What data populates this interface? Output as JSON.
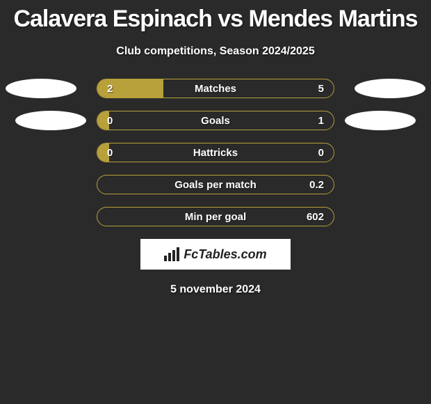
{
  "background_color": "#2a2a2a",
  "accent_color": "#b8a03a",
  "text_color": "#ffffff",
  "title": {
    "line1": "Calavera Espinach vs Mendes Martins",
    "font_size": 34,
    "font_weight": 900
  },
  "subtitle": {
    "text": "Club competitions, Season 2024/2025",
    "font_size": 16
  },
  "bars": {
    "track_width": 342,
    "track_height": 28,
    "border_color": "#b8a03a",
    "border_radius": 14,
    "fill_color": "#b8a03a",
    "label_font_size": 15
  },
  "rows": [
    {
      "label": "Matches",
      "left_val": "2",
      "right_val": "5",
      "left_pct": 28,
      "show_left_placeholder": true,
      "show_right_placeholder": true
    },
    {
      "label": "Goals",
      "left_val": "0",
      "right_val": "1",
      "left_pct": 5,
      "show_left_placeholder": true,
      "show_right_placeholder": true
    },
    {
      "label": "Hattricks",
      "left_val": "0",
      "right_val": "0",
      "left_pct": 5,
      "show_left_placeholder": false,
      "show_right_placeholder": false
    },
    {
      "label": "Goals per match",
      "left_val": "",
      "right_val": "0.2",
      "left_pct": 0,
      "show_left_placeholder": false,
      "show_right_placeholder": false
    },
    {
      "label": "Min per goal",
      "left_val": "",
      "right_val": "602",
      "left_pct": 0,
      "show_left_placeholder": false,
      "show_right_placeholder": false
    }
  ],
  "placeholder_ellipse": {
    "width": 102,
    "height": 28,
    "color": "#ffffff",
    "left_offsets": [
      8,
      22
    ],
    "right_offsets": [
      8,
      22
    ]
  },
  "logo": {
    "text": "FcTables.com",
    "box_bg": "#ffffff",
    "text_color": "#222222",
    "font_size": 18
  },
  "date": {
    "text": "5 november 2024",
    "font_size": 16
  }
}
